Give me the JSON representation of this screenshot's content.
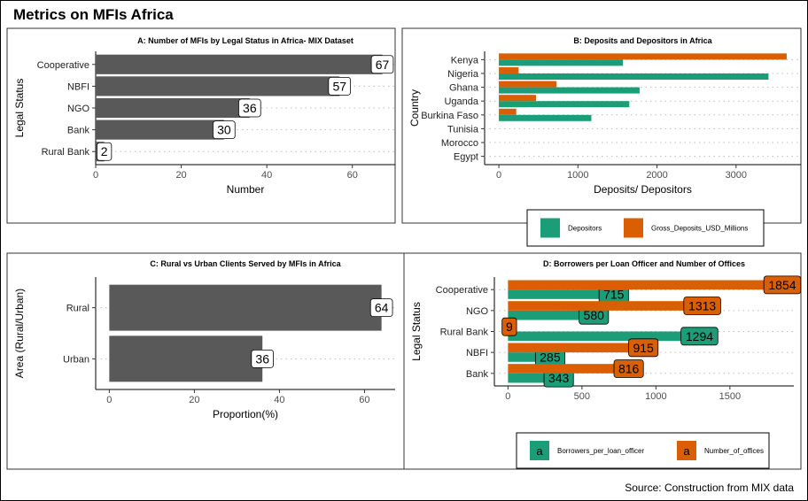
{
  "title": "Metrics on MFIs Africa",
  "caption": "Source: Construction from MIX data",
  "colors": {
    "bar": "#595959",
    "teal": "#1b9e77",
    "orange": "#d95f02",
    "grid": "#bdbdbd"
  },
  "chart_data": [
    {
      "type": "bar",
      "orientation": "horizontal",
      "title": "A: Number of MFIs by Legal Status in Africa- MIX Dataset",
      "xlabel": "Number",
      "ylabel": "Legal Status",
      "categories": [
        "Cooperative",
        "NBFI",
        "NGO",
        "Bank",
        "Rural Bank"
      ],
      "values": [
        67,
        57,
        36,
        30,
        2
      ],
      "xlim": [
        0,
        70
      ],
      "xticks": [
        0,
        20,
        40,
        60
      ],
      "grid": "dotted horizontal",
      "data_labels": true
    },
    {
      "type": "bar",
      "orientation": "horizontal",
      "title": "B: Deposits and Depositors in Africa",
      "xlabel": "Deposits/ Depositors",
      "ylabel": "Country",
      "categories": [
        "Kenya",
        "Nigeria",
        "Ghana",
        "Uganda",
        "Burkina Faso",
        "Tunisia",
        "Morocco",
        "Egypt"
      ],
      "series": [
        {
          "name": "Depositors",
          "values": [
            1570,
            3410,
            1780,
            1650,
            1170,
            0,
            0,
            0
          ]
        },
        {
          "name": "Gross_Deposits_USD_Millions",
          "values": [
            3640,
            250,
            730,
            470,
            220,
            0,
            0,
            0
          ]
        }
      ],
      "xlim": [
        -180,
        3820
      ],
      "xticks": [
        0,
        1000,
        2000,
        3000
      ],
      "legend": "bottom",
      "grid": "dotted horizontal"
    },
    {
      "type": "bar",
      "orientation": "horizontal",
      "title": "C: Rural vs Urban Clients Served by MFIs in Africa",
      "xlabel": "Proportion(%)",
      "ylabel": "Area (Rural/Urban)",
      "categories": [
        "Rural",
        "Urban"
      ],
      "values": [
        64,
        36
      ],
      "xlim": [
        -3.2,
        67.2
      ],
      "xticks": [
        0,
        20,
        40,
        60
      ],
      "grid": "dotted horizontal",
      "data_labels": true
    },
    {
      "type": "bar",
      "orientation": "horizontal",
      "title": "D: Borrowers per Loan Officer and Number of Offices",
      "xlabel": "",
      "ylabel": "Legal Status",
      "categories": [
        "Cooperative",
        "NGO",
        "Rural Bank",
        "NBFI",
        "Bank"
      ],
      "series": [
        {
          "name": "Borrowers_per_loan_officer",
          "values": [
            715,
            580,
            1294,
            285,
            343
          ]
        },
        {
          "name": "Number_of_offices",
          "values": [
            1854,
            1313,
            9,
            915,
            816
          ]
        }
      ],
      "xlim": [
        -92,
        1932
      ],
      "xticks": [
        0,
        500,
        1000,
        1500
      ],
      "legend": "bottom",
      "grid": "dotted horizontal",
      "data_labels": true
    }
  ]
}
